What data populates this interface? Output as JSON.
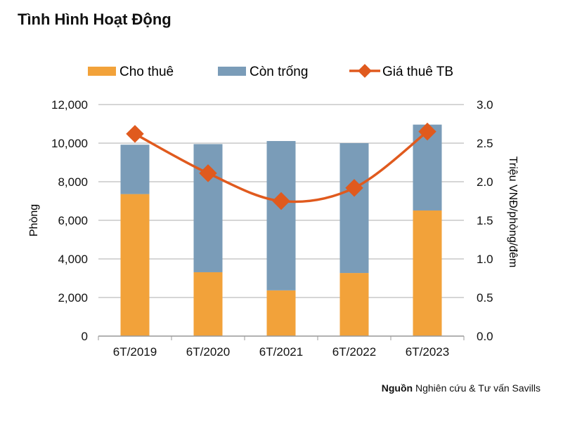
{
  "chart_data": {
    "type": "bar",
    "title": "Tình Hình Hoạt Động",
    "categories": [
      "6T/2019",
      "6T/2020",
      "6T/2021",
      "6T/2022",
      "6T/2023"
    ],
    "stacked": true,
    "series": [
      {
        "name": "Cho thuê",
        "type": "bar",
        "axis": "left",
        "color": "#F2A23A",
        "values": [
          7360,
          3310,
          2370,
          3270,
          6510
        ]
      },
      {
        "name": "Còn trống",
        "type": "bar",
        "axis": "left",
        "color": "#7A9CB8",
        "values": [
          2560,
          6640,
          7740,
          6730,
          4450
        ]
      },
      {
        "name": "Giá thuê TB",
        "type": "line",
        "axis": "right",
        "color": "#E05A1E",
        "marker": "diamond",
        "smooth": true,
        "values": [
          2.62,
          2.11,
          1.75,
          1.92,
          2.65
        ]
      }
    ],
    "ylabel": "Phòng",
    "ylabel_right": "Triệu VNĐ/phòng/đêm",
    "ylim": [
      0,
      12000
    ],
    "ylim_right": [
      0,
      3.0
    ],
    "yticks": [
      "0",
      "2,000",
      "4,000",
      "6,000",
      "8,000",
      "10,000",
      "12,000"
    ],
    "yticks_right": [
      "0.0",
      "0.5",
      "1.0",
      "1.5",
      "2.0",
      "2.5",
      "3.0"
    ],
    "grid": true,
    "legend": "top"
  },
  "source": {
    "label": "Nguồn",
    "text": " Nghiên cứu & Tư vấn Savills"
  }
}
